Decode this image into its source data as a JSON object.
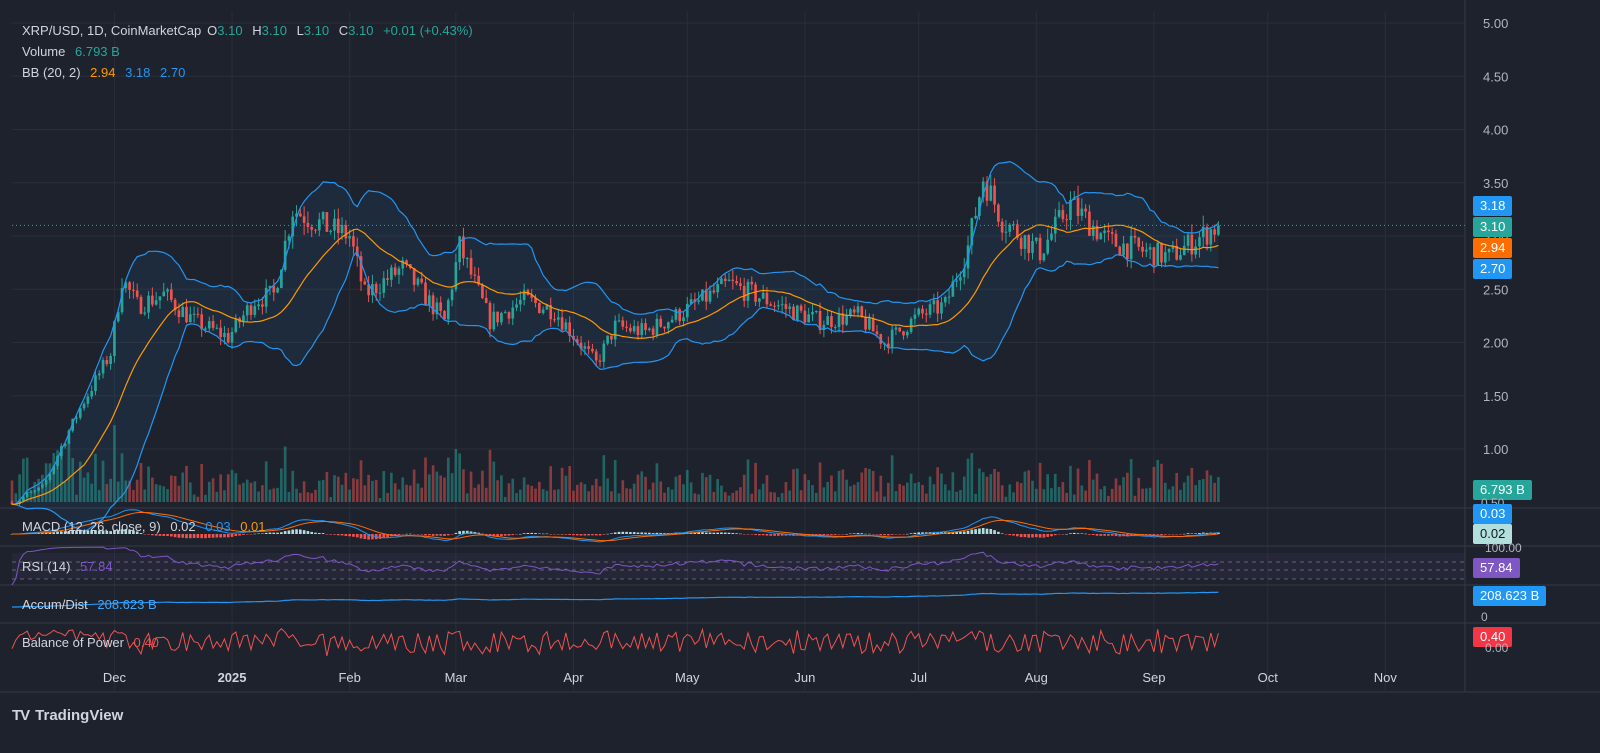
{
  "legend": {
    "symbol": "XRP/USD, 1D, CoinMarketCap",
    "o_label": "O",
    "o_value": "3.10",
    "h_label": "H",
    "h_value": "3.10",
    "l_label": "L",
    "l_value": "3.10",
    "c_label": "C",
    "c_value": "3.10",
    "change": "+0.01 (+0.43%)",
    "volume_label": "Volume",
    "volume_value": "6.793 B",
    "bb_label": "BB (20, 2)",
    "bb_basis": "2.94",
    "bb_upper": "3.18",
    "bb_lower": "2.70",
    "macd_label": "MACD (12, 26, close, 9)",
    "macd_hist": "0.02",
    "macd_line": "0.03",
    "macd_signal": "0.01",
    "rsi_label": "RSI (14)",
    "rsi_value": "57.84",
    "ad_label": "Accum/Dist",
    "ad_value": "208.623 B",
    "bop_label": "Balance of Power",
    "bop_value": "0.40"
  },
  "badges": {
    "bb_upper": "3.18",
    "last_price": "3.10",
    "bb_basis": "2.94",
    "bb_lower": "2.70",
    "volume": "6.793 B",
    "macd_line": "0.03",
    "macd_hist": "0.02",
    "rsi": "57.84",
    "ad": "208.623 B",
    "bop": "0.40",
    "rsi_scale_top": "100.00",
    "ad_scale_zero": "0",
    "macd_scale": "0.50",
    "bop_scale": "0.00"
  },
  "brand": {
    "name": "TradingView",
    "logo": "TV"
  },
  "colors": {
    "up": "#26a69a",
    "down": "#ef5350",
    "bb_band": "#2196f3",
    "bb_basis": "#ff9800",
    "rsi": "#7e57c2",
    "ad": "#2196f3",
    "bop": "#ef5350",
    "background": "#1e222d"
  },
  "chart_data": {
    "type": "candlestick",
    "y_ticks": [
      "5.00",
      "4.50",
      "4.00",
      "3.50",
      "3.00",
      "2.50",
      "2.00",
      "1.50",
      "1.00"
    ],
    "ylim": [
      0.5,
      5.1
    ],
    "x_ticks": [
      {
        "label": "Dec",
        "date": "2024-12-01"
      },
      {
        "label": "2025",
        "date": "2025-01-01"
      },
      {
        "label": "Feb",
        "date": "2025-02-01"
      },
      {
        "label": "Mar",
        "date": "2025-03-01"
      },
      {
        "label": "Apr",
        "date": "2025-04-01"
      },
      {
        "label": "May",
        "date": "2025-05-01"
      },
      {
        "label": "Jun",
        "date": "2025-06-01"
      },
      {
        "label": "Jul",
        "date": "2025-07-01"
      },
      {
        "label": "Aug",
        "date": "2025-08-01"
      },
      {
        "label": "Sep",
        "date": "2025-09-01"
      },
      {
        "label": "Oct",
        "date": "2025-10-01"
      },
      {
        "label": "Nov",
        "date": "2025-11-01"
      }
    ],
    "x_range": [
      "2024-11-04",
      "2025-11-22"
    ],
    "last_date": "2025-09-18",
    "last_price": 3.1,
    "close_path": [
      {
        "date": "2024-11-04",
        "close": 0.5
      },
      {
        "date": "2024-11-12",
        "close": 0.62
      },
      {
        "date": "2024-11-18",
        "close": 1.1
      },
      {
        "date": "2024-11-23",
        "close": 1.45
      },
      {
        "date": "2024-11-30",
        "close": 1.9
      },
      {
        "date": "2024-12-03",
        "close": 2.6
      },
      {
        "date": "2024-12-07",
        "close": 2.35
      },
      {
        "date": "2024-12-14",
        "close": 2.45
      },
      {
        "date": "2024-12-22",
        "close": 2.2
      },
      {
        "date": "2024-12-31",
        "close": 2.05
      },
      {
        "date": "2025-01-07",
        "close": 2.4
      },
      {
        "date": "2025-01-12",
        "close": 2.45
      },
      {
        "date": "2025-01-17",
        "close": 3.25
      },
      {
        "date": "2025-01-25",
        "close": 3.1
      },
      {
        "date": "2025-02-01",
        "close": 3.0
      },
      {
        "date": "2025-02-05",
        "close": 2.45
      },
      {
        "date": "2025-02-15",
        "close": 2.7
      },
      {
        "date": "2025-02-26",
        "close": 2.2
      },
      {
        "date": "2025-03-02",
        "close": 2.9
      },
      {
        "date": "2025-03-10",
        "close": 2.2
      },
      {
        "date": "2025-03-19",
        "close": 2.4
      },
      {
        "date": "2025-03-27",
        "close": 2.3
      },
      {
        "date": "2025-04-07",
        "close": 1.8
      },
      {
        "date": "2025-04-12",
        "close": 2.15
      },
      {
        "date": "2025-04-20",
        "close": 2.1
      },
      {
        "date": "2025-04-28",
        "close": 2.25
      },
      {
        "date": "2025-05-12",
        "close": 2.55
      },
      {
        "date": "2025-05-25",
        "close": 2.35
      },
      {
        "date": "2025-06-05",
        "close": 2.2
      },
      {
        "date": "2025-06-15",
        "close": 2.25
      },
      {
        "date": "2025-06-22",
        "close": 2.0
      },
      {
        "date": "2025-07-01",
        "close": 2.25
      },
      {
        "date": "2025-07-08",
        "close": 2.35
      },
      {
        "date": "2025-07-14",
        "close": 2.9
      },
      {
        "date": "2025-07-18",
        "close": 3.55
      },
      {
        "date": "2025-07-23",
        "close": 3.15
      },
      {
        "date": "2025-08-02",
        "close": 2.85
      },
      {
        "date": "2025-08-10",
        "close": 3.3
      },
      {
        "date": "2025-08-20",
        "close": 2.95
      },
      {
        "date": "2025-08-30",
        "close": 2.85
      },
      {
        "date": "2025-09-05",
        "close": 2.8
      },
      {
        "date": "2025-09-18",
        "close": 3.1
      }
    ],
    "bb_last": {
      "upper": 3.18,
      "basis": 2.94,
      "lower": 2.7
    },
    "volume_last": 6.793,
    "rsi_last": 57.84,
    "bop_last": 0.4
  }
}
